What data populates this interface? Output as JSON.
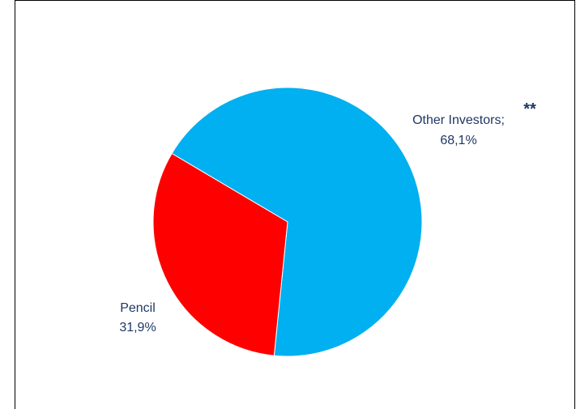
{
  "chart_data": {
    "type": "pie",
    "categories": [
      "Other Investors",
      "Pencil"
    ],
    "values": [
      68.1,
      31.9
    ],
    "value_labels": [
      "68,1%",
      "31,9%"
    ],
    "category_labels": [
      "Other Investors;",
      "Pencil"
    ],
    "colors": [
      "#00b0f0",
      "#ff0000"
    ],
    "annotation": "**",
    "legend": "none"
  }
}
